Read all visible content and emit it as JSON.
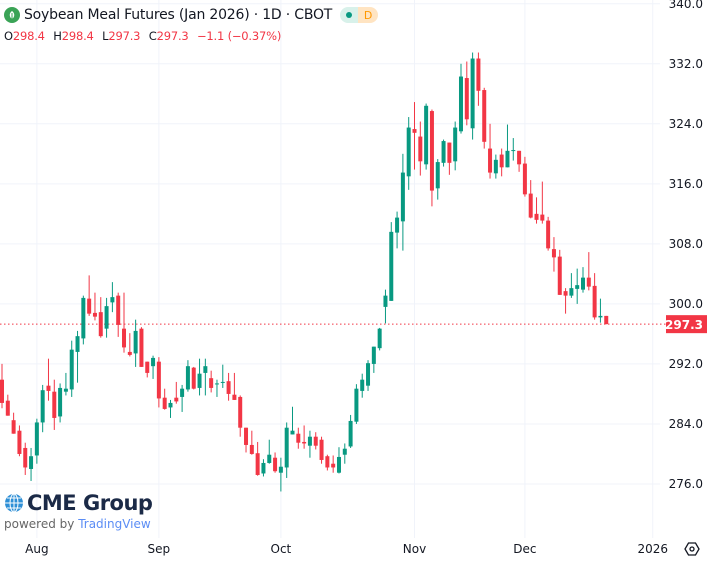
{
  "header": {
    "title": "Soybean Meal Futures (Jan 2026) · 1D · CBOT",
    "status_dot": "market-status-dot",
    "delay_badge": "D",
    "ohlc": {
      "o_label": "O",
      "o": "298.4",
      "h_label": "H",
      "h": "298.4",
      "l_label": "L",
      "l": "297.3",
      "c_label": "C",
      "c": "297.3",
      "change": "−1.1 (−0.37%)"
    }
  },
  "branding": {
    "logo_text": "CME Group",
    "powered_by": "powered by",
    "tv": "TradingView"
  },
  "colors": {
    "up": "#089981",
    "down": "#f23645",
    "grid": "#f0f3fa",
    "last_price": "#f23645"
  },
  "chart_data": {
    "type": "candlestick",
    "title": "Soybean Meal Futures (Jan 2026)",
    "ylim": [
      268.8,
      340.5
    ],
    "y_ticks": [
      "340.0",
      "332.0",
      "324.0",
      "316.0",
      "308.0",
      "300.0",
      "292.0",
      "284.0",
      "276.0"
    ],
    "x_ticks": [
      {
        "label": "Aug",
        "bar": 6
      },
      {
        "label": "Sep",
        "bar": 27
      },
      {
        "label": "Oct",
        "bar": 48
      },
      {
        "label": "Nov",
        "bar": 71
      },
      {
        "label": "Dec",
        "bar": 90
      },
      {
        "label": "2026",
        "bar": 112
      }
    ],
    "last_price": "297.3",
    "grid": true,
    "candles_ohlc": [
      [
        289.9,
        292.0,
        286.1,
        286.8
      ],
      [
        287.1,
        287.9,
        285.1,
        285.1
      ],
      [
        284.5,
        285.5,
        282.7,
        282.7
      ],
      [
        283.1,
        283.8,
        279.7,
        280.0
      ],
      [
        280.8,
        281.5,
        277.2,
        278.2
      ],
      [
        278.0,
        280.8,
        276.4,
        279.7
      ],
      [
        279.8,
        284.7,
        278.7,
        284.2
      ],
      [
        284.2,
        289.2,
        282.9,
        288.5
      ],
      [
        289.1,
        292.7,
        287.1,
        288.4
      ],
      [
        288.3,
        289.9,
        283.2,
        284.8
      ],
      [
        285.0,
        289.4,
        284.2,
        288.8
      ],
      [
        288.3,
        290.8,
        287.8,
        288.7
      ],
      [
        288.6,
        295.1,
        287.6,
        293.9
      ],
      [
        293.6,
        296.4,
        289.5,
        295.7
      ],
      [
        295.4,
        301.1,
        294.6,
        300.8
      ],
      [
        300.7,
        303.8,
        298.4,
        298.7
      ],
      [
        298.8,
        301.5,
        297.8,
        298.3
      ],
      [
        298.9,
        300.9,
        295.5,
        295.7
      ],
      [
        296.7,
        300.8,
        295.5,
        299.7
      ],
      [
        300.2,
        302.9,
        298.9,
        300.9
      ],
      [
        301.1,
        301.5,
        295.6,
        297.2
      ],
      [
        296.7,
        301.5,
        293.5,
        294.2
      ],
      [
        293.6,
        296.1,
        293.0,
        293.2
      ],
      [
        293.4,
        297.9,
        291.6,
        296.4
      ],
      [
        296.7,
        296.9,
        291.6,
        291.6
      ],
      [
        292.3,
        292.3,
        290.2,
        290.8
      ],
      [
        291.7,
        293.1,
        290.0,
        292.8
      ],
      [
        292.3,
        292.9,
        286.2,
        287.4
      ],
      [
        287.5,
        288.7,
        285.9,
        286.0
      ],
      [
        286.2,
        287.2,
        284.8,
        286.8
      ],
      [
        287.5,
        289.6,
        286.7,
        287.0
      ],
      [
        287.6,
        289.2,
        285.6,
        288.7
      ],
      [
        288.6,
        292.5,
        288.3,
        291.7
      ],
      [
        291.5,
        291.6,
        288.6,
        288.7
      ],
      [
        288.8,
        292.7,
        287.8,
        290.7
      ],
      [
        290.8,
        292.7,
        287.8,
        291.7
      ],
      [
        290.1,
        291.1,
        288.2,
        288.8
      ],
      [
        289.3,
        289.9,
        287.6,
        289.4
      ],
      [
        289.5,
        291.9,
        288.8,
        289.6
      ],
      [
        289.7,
        290.8,
        287.1,
        288.0
      ],
      [
        287.9,
        290.8,
        287.2,
        287.2
      ],
      [
        287.6,
        287.8,
        282.3,
        283.5
      ],
      [
        283.5,
        283.5,
        280.2,
        281.2
      ],
      [
        281.2,
        283.1,
        279.9,
        280.0
      ],
      [
        280.1,
        281.6,
        277.1,
        277.2
      ],
      [
        277.4,
        279.3,
        277.0,
        278.8
      ],
      [
        278.8,
        281.9,
        278.7,
        279.9
      ],
      [
        279.5,
        280.2,
        277.5,
        277.7
      ],
      [
        277.5,
        279.5,
        275.0,
        278.3
      ],
      [
        278.2,
        284.2,
        276.8,
        283.5
      ],
      [
        282.6,
        286.3,
        282.6,
        283.1
      ],
      [
        282.7,
        283.5,
        280.7,
        281.5
      ],
      [
        281.6,
        283.8,
        280.7,
        281.4
      ],
      [
        281.1,
        283.1,
        279.5,
        282.3
      ],
      [
        282.3,
        282.9,
        280.6,
        281.1
      ],
      [
        281.9,
        282.3,
        278.7,
        279.2
      ],
      [
        279.7,
        279.9,
        277.8,
        278.2
      ],
      [
        278.7,
        279.8,
        277.5,
        278.2
      ],
      [
        277.5,
        280.9,
        277.4,
        279.6
      ],
      [
        279.9,
        281.4,
        278.7,
        280.7
      ],
      [
        281.0,
        285.2,
        280.8,
        284.4
      ],
      [
        284.3,
        289.3,
        284.0,
        288.7
      ],
      [
        288.4,
        290.7,
        287.5,
        289.9
      ],
      [
        289.1,
        292.5,
        288.4,
        292.1
      ],
      [
        292.0,
        294.3,
        290.8,
        294.3
      ],
      [
        294.1,
        296.8,
        293.8,
        296.7
      ],
      [
        299.6,
        301.9,
        297.4,
        301.1
      ],
      [
        300.4,
        310.9,
        300.4,
        309.6
      ],
      [
        309.5,
        312.3,
        307.4,
        311.5
      ],
      [
        311.0,
        320.0,
        307.1,
        317.5
      ],
      [
        317.0,
        324.9,
        315.2,
        323.5
      ],
      [
        323.3,
        326.9,
        317.9,
        322.8
      ],
      [
        322.3,
        324.3,
        317.1,
        319.0
      ],
      [
        318.6,
        326.7,
        317.9,
        326.4
      ],
      [
        325.7,
        325.9,
        313.0,
        315.1
      ],
      [
        315.4,
        319.3,
        313.9,
        318.9
      ],
      [
        318.8,
        321.9,
        318.3,
        321.7
      ],
      [
        321.5,
        321.5,
        317.2,
        318.8
      ],
      [
        319.0,
        324.3,
        317.8,
        323.5
      ],
      [
        323.0,
        332.0,
        322.7,
        330.3
      ],
      [
        330.1,
        332.3,
        323.8,
        324.6
      ],
      [
        323.4,
        333.5,
        321.9,
        332.7
      ],
      [
        332.7,
        333.5,
        326.4,
        328.4
      ],
      [
        328.5,
        328.8,
        320.7,
        321.6
      ],
      [
        320.7,
        324.0,
        316.7,
        317.5
      ],
      [
        317.4,
        319.9,
        316.7,
        319.2
      ],
      [
        319.9,
        320.7,
        317.0,
        318.2
      ],
      [
        318.2,
        323.9,
        318.2,
        320.4
      ],
      [
        320.4,
        322.1,
        319.1,
        320.5
      ],
      [
        320.4,
        320.4,
        317.6,
        318.6
      ],
      [
        318.7,
        319.6,
        314.3,
        314.6
      ],
      [
        314.7,
        316.5,
        311.4,
        311.5
      ],
      [
        312.0,
        314.2,
        310.7,
        311.2
      ],
      [
        311.9,
        316.3,
        310.7,
        311.1
      ],
      [
        311.1,
        311.6,
        307.1,
        307.4
      ],
      [
        307.3,
        308.9,
        304.3,
        306.2
      ],
      [
        306.3,
        307.2,
        301.2,
        301.2
      ],
      [
        301.7,
        302.1,
        298.7,
        301.1
      ],
      [
        301.1,
        304.1,
        300.8,
        302.1
      ],
      [
        302.0,
        304.7,
        300.0,
        302.5
      ],
      [
        301.9,
        304.9,
        301.5,
        303.5
      ],
      [
        303.5,
        306.9,
        301.8,
        302.3
      ],
      [
        302.4,
        304.1,
        297.9,
        298.2
      ],
      [
        298.2,
        300.7,
        297.5,
        298.4
      ],
      [
        298.4,
        298.4,
        297.3,
        297.3
      ]
    ]
  }
}
